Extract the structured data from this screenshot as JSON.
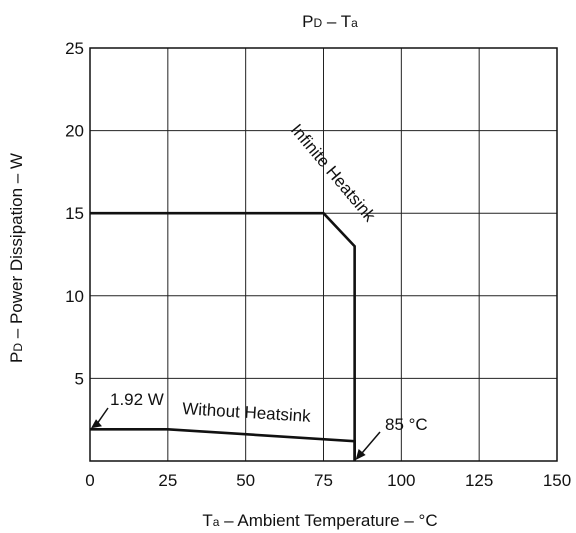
{
  "chart_data": {
    "type": "line",
    "title": "PD – Ta",
    "title_parts": {
      "main": "P",
      "main_sub": "D",
      "sep": " – T",
      "sep_sub": "a"
    },
    "xlabel": "Ta – Ambient Temperature – °C",
    "xlabel_parts": {
      "main": "T",
      "main_sub": "a",
      "rest": " – Ambient Temperature – °C"
    },
    "ylabel": "PD – Power Dissipation – W",
    "ylabel_parts": {
      "main": "P",
      "main_sub": "D",
      "rest": " – Power Dissipation – W"
    },
    "xlim": [
      0,
      150
    ],
    "ylim": [
      0,
      25
    ],
    "x_ticks": [
      "0",
      "25",
      "50",
      "75",
      "100",
      "125",
      "150"
    ],
    "y_ticks": [
      "5",
      "10",
      "15",
      "20",
      "25"
    ],
    "x_tick_values": [
      0,
      25,
      50,
      75,
      100,
      125,
      150
    ],
    "y_tick_values": [
      5,
      10,
      15,
      20,
      25
    ],
    "grid": true,
    "series": [
      {
        "name": "Infinite Heatsink",
        "x": [
          0,
          75,
          85,
          85
        ],
        "y": [
          15,
          15,
          13,
          0
        ]
      },
      {
        "name": "Without Heatsink",
        "x": [
          0,
          25,
          85,
          85
        ],
        "y": [
          1.92,
          1.92,
          1.2,
          0
        ]
      }
    ],
    "annotations": [
      {
        "text": "1.92 W",
        "x": 0,
        "y": 1.92
      },
      {
        "text": "85 °C",
        "x": 85,
        "y": 0
      }
    ]
  }
}
